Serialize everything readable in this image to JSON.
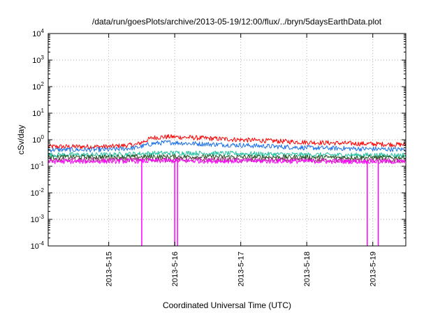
{
  "chart_data": {
    "type": "line",
    "title": "/data/run/goesPlots/archive/2013-05-19/12:00/flux/../bryn/5daysEarthData.plot",
    "xlabel": "Coordinated Universal Time (UTC)",
    "ylabel": "cSv/day",
    "y_scale": "log",
    "ylim": [
      0.0001,
      10000
    ],
    "xlim": [
      "2013-05-14 02:00",
      "2013-05-19 12:00"
    ],
    "grid": true,
    "y_ticks": [
      {
        "value": 0.0001,
        "base": "10",
        "exp": "-4"
      },
      {
        "value": 0.001,
        "base": "10",
        "exp": "-3"
      },
      {
        "value": 0.01,
        "base": "10",
        "exp": "-2"
      },
      {
        "value": 0.1,
        "base": "10",
        "exp": "-1"
      },
      {
        "value": 1,
        "base": "10",
        "exp": "0"
      },
      {
        "value": 10,
        "base": "10",
        "exp": "1"
      },
      {
        "value": 100,
        "base": "10",
        "exp": "2"
      },
      {
        "value": 1000,
        "base": "10",
        "exp": "3"
      },
      {
        "value": 10000,
        "base": "10",
        "exp": "4"
      }
    ],
    "x_ticks": [
      {
        "value": "2013-05-15",
        "label": "2013-5-15"
      },
      {
        "value": "2013-05-16",
        "label": "2013-5-16"
      },
      {
        "value": "2013-05-17",
        "label": "2013-5-17"
      },
      {
        "value": "2013-05-18",
        "label": "2013-5-18"
      },
      {
        "value": "2013-05-19",
        "label": "2013-5-19"
      }
    ],
    "series": [
      {
        "color": "#ff0000",
        "points": [
          [
            "2013-05-14 02:00",
            0.55
          ],
          [
            "2013-05-15 00:00",
            0.55
          ],
          [
            "2013-05-15 10:00",
            0.65
          ],
          [
            "2013-05-15 16:00",
            1.2
          ],
          [
            "2013-05-15 22:00",
            1.3
          ],
          [
            "2013-05-16 06:00",
            1.2
          ],
          [
            "2013-05-17 00:00",
            1.0
          ],
          [
            "2013-05-18 00:00",
            0.8
          ],
          [
            "2013-05-18 22:00",
            0.7
          ],
          [
            "2013-05-19 12:00",
            0.65
          ]
        ]
      },
      {
        "color": "#1a6fe8",
        "points": [
          [
            "2013-05-14 02:00",
            0.42
          ],
          [
            "2013-05-15 00:00",
            0.42
          ],
          [
            "2013-05-15 10:00",
            0.5
          ],
          [
            "2013-05-15 16:00",
            0.72
          ],
          [
            "2013-05-15 22:00",
            0.8
          ],
          [
            "2013-05-16 06:00",
            0.72
          ],
          [
            "2013-05-17 00:00",
            0.62
          ],
          [
            "2013-05-18 00:00",
            0.5
          ],
          [
            "2013-05-18 22:00",
            0.45
          ],
          [
            "2013-05-19 12:00",
            0.43
          ]
        ]
      },
      {
        "color": "#20c0a0",
        "points": [
          [
            "2013-05-14 02:00",
            0.27
          ],
          [
            "2013-05-15 00:00",
            0.27
          ],
          [
            "2013-05-15 12:00",
            0.3
          ],
          [
            "2013-05-16 00:00",
            0.32
          ],
          [
            "2013-05-17 00:00",
            0.3
          ],
          [
            "2013-05-18 00:00",
            0.27
          ],
          [
            "2013-05-19 12:00",
            0.26
          ]
        ]
      },
      {
        "color": "#1f4f1f",
        "points": [
          [
            "2013-05-14 02:00",
            0.22
          ],
          [
            "2013-05-16 00:00",
            0.23
          ],
          [
            "2013-05-19 12:00",
            0.21
          ]
        ]
      },
      {
        "color": "#a0307a",
        "points": [
          [
            "2013-05-14 02:00",
            0.17
          ],
          [
            "2013-05-16 00:00",
            0.18
          ],
          [
            "2013-05-19 12:00",
            0.16
          ]
        ]
      },
      {
        "color": "#ff00ff",
        "points": [
          [
            "2013-05-14 02:00",
            0.15
          ],
          [
            "2013-05-16 00:00",
            0.16
          ],
          [
            "2013-05-19 12:00",
            0.15
          ]
        ],
        "dropouts": [
          "2013-05-15 12:00",
          "2013-05-16 00:00",
          "2013-05-16 01:00",
          "2013-05-18 22:00",
          "2013-05-19 02:00"
        ]
      }
    ]
  }
}
